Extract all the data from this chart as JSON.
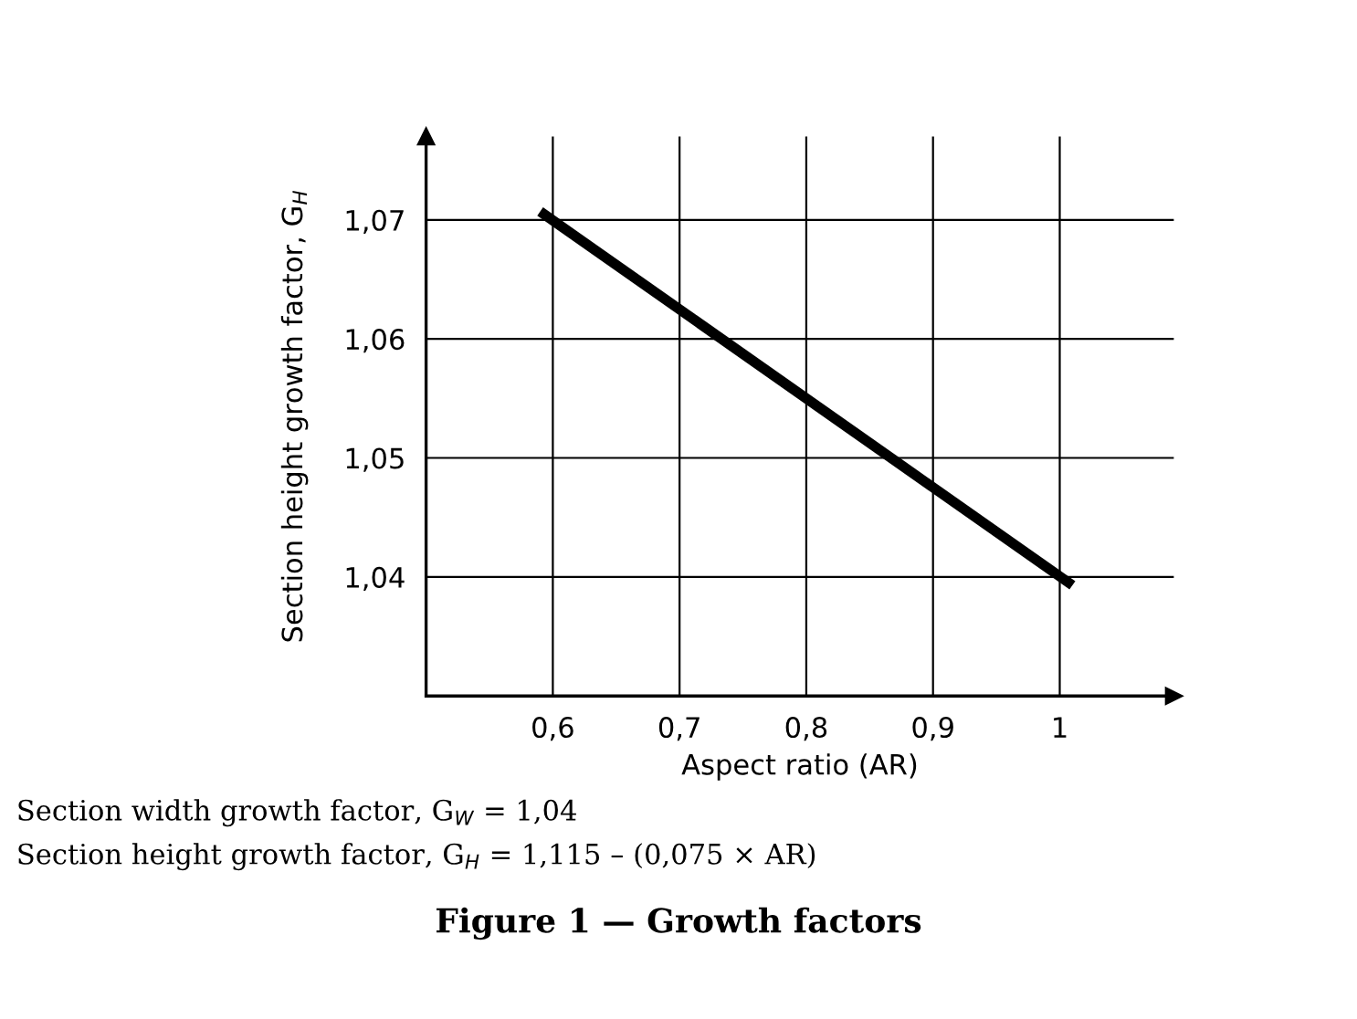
{
  "chart_data": {
    "type": "line",
    "title": "Figure 1 — Growth factors",
    "xlabel": "Aspect ratio (AR)",
    "ylabel": "Section height growth factor, G$_{H}$",
    "annotations": [
      "Section width growth factor, G$_{W}$ = 1,04",
      "Section height growth factor, G$_{H}$ = 1,115 – (0,075 × AR)"
    ],
    "x": [
      0.59,
      1.01
    ],
    "series": [
      {
        "color": "#000000",
        "values": [
          1.0707,
          1.0393
        ]
      }
    ],
    "xlim": [
      0.5,
      1.09
    ],
    "ylim": [
      1.03,
      1.077
    ],
    "xticks": [
      {
        "value": 0.6,
        "label": "0,6"
      },
      {
        "value": 0.7,
        "label": "0,7"
      },
      {
        "value": 0.8,
        "label": "0,8"
      },
      {
        "value": 0.9,
        "label": "0,9"
      },
      {
        "value": 1,
        "label": "1"
      }
    ],
    "yticks": [
      {
        "value": 1.04,
        "label": "1,04"
      },
      {
        "value": 1.05,
        "label": "1,05"
      },
      {
        "value": 1.06,
        "label": "1,06"
      },
      {
        "value": 1.07,
        "label": "1,07"
      }
    ],
    "grid": true,
    "marker": "none",
    "line_style": "solid"
  }
}
